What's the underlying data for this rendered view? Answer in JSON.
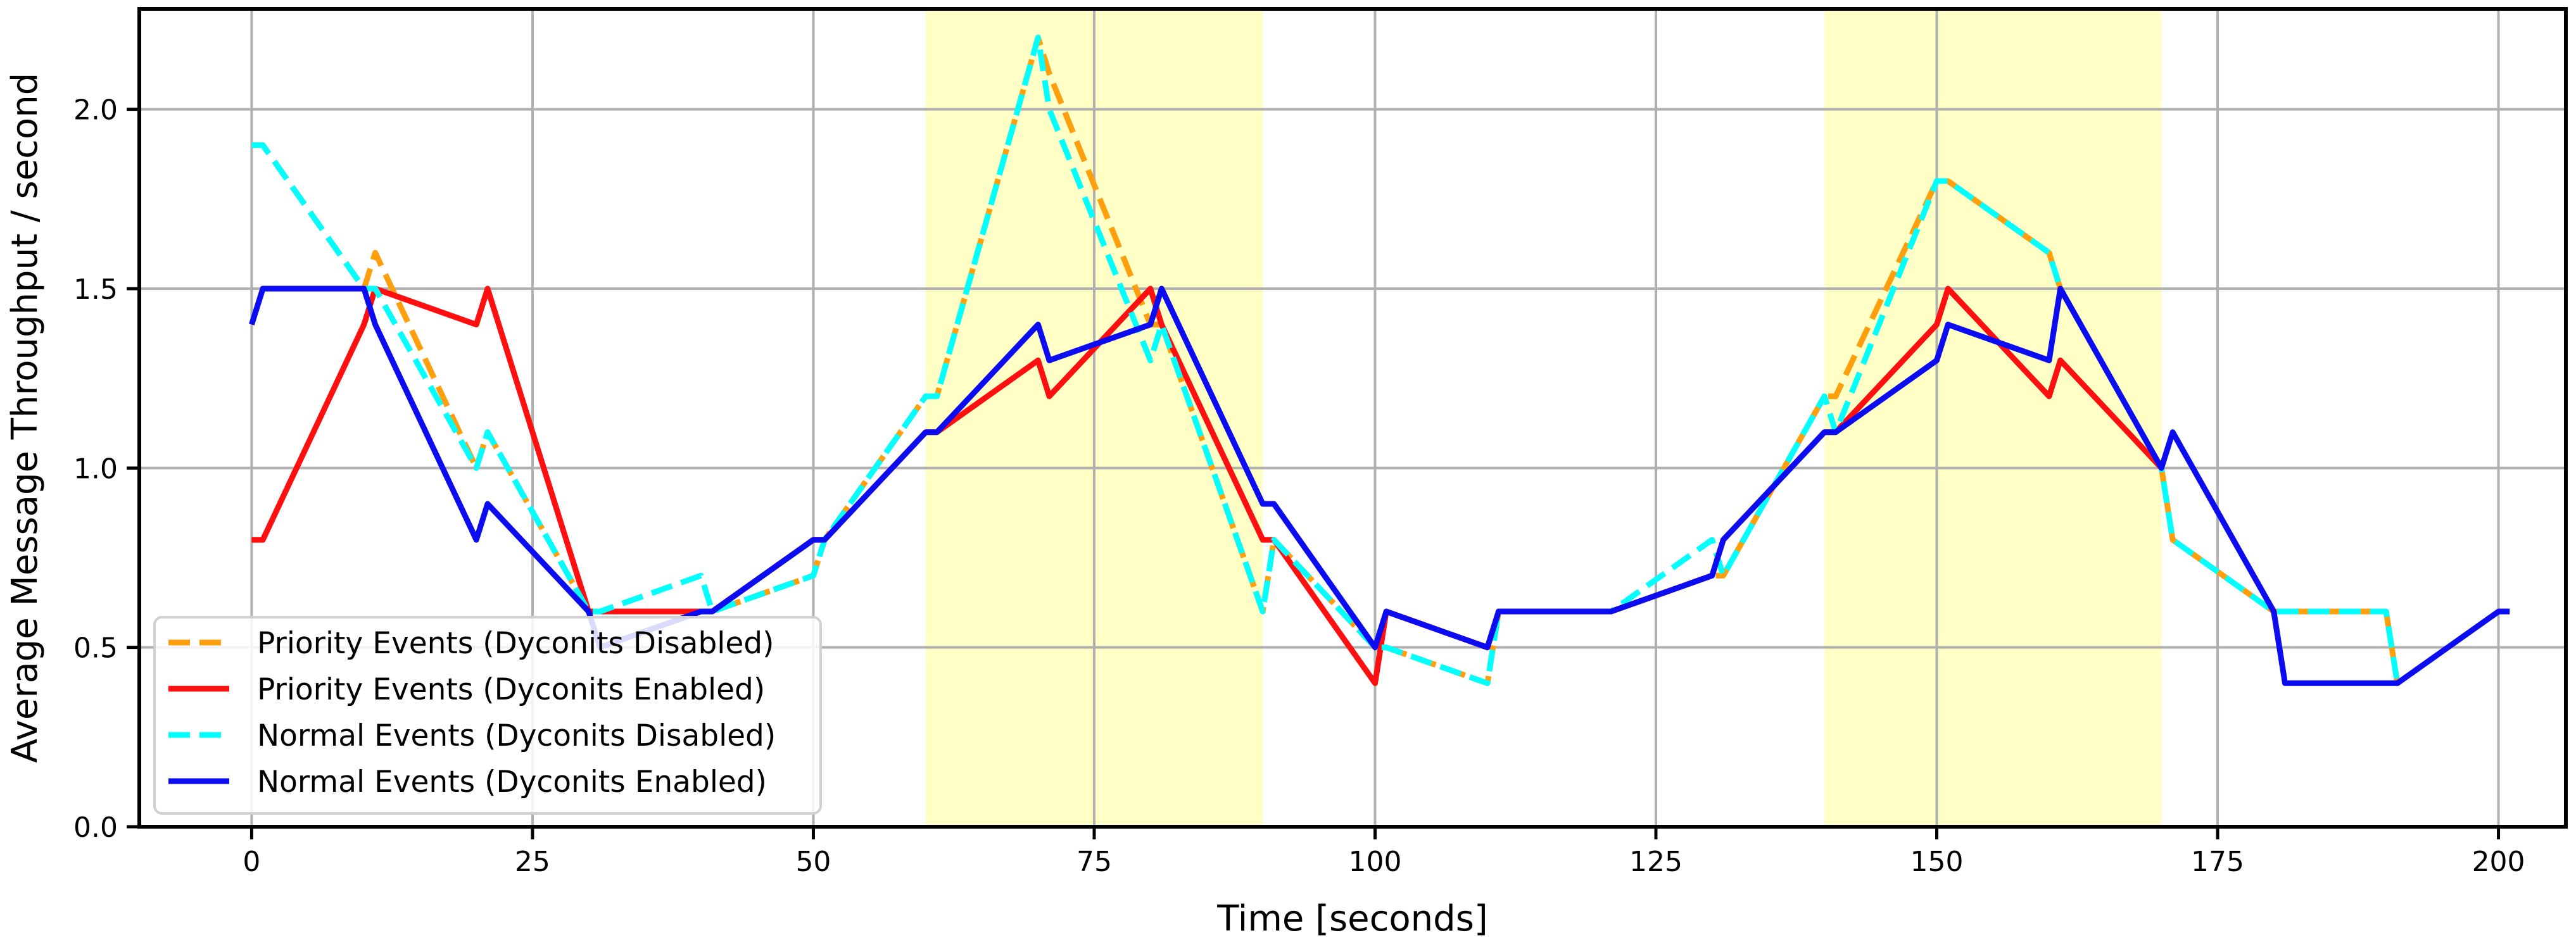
{
  "chart_data": {
    "type": "line",
    "title": "",
    "xlabel": "Time [seconds]",
    "ylabel": "Average Message Throughput / second",
    "xlim": [
      -10,
      206
    ],
    "ylim": [
      0.0,
      2.28
    ],
    "x_ticks": [
      0,
      25,
      50,
      75,
      100,
      125,
      150,
      175,
      200
    ],
    "y_ticks": [
      0.0,
      0.5,
      1.0,
      1.5,
      2.0
    ],
    "grid": true,
    "legend_position": "lower-left",
    "highlight_regions": [
      {
        "x0": 60,
        "x1": 90,
        "color": "#ffffc6"
      },
      {
        "x0": 140,
        "x1": 170,
        "color": "#ffffc6"
      }
    ],
    "series": [
      {
        "name": "Priority Events (Dyconits Disabled)",
        "color": "#ff9f0e",
        "style": "dashed",
        "points": [
          [
            0,
            1.9
          ],
          [
            1,
            1.9
          ],
          [
            10,
            1.5
          ],
          [
            11,
            1.6
          ],
          [
            20,
            1.0
          ],
          [
            21,
            1.1
          ],
          [
            30,
            0.6
          ],
          [
            31,
            0.6
          ],
          [
            40,
            0.6
          ],
          [
            41,
            0.6
          ],
          [
            50,
            0.7
          ],
          [
            51,
            0.8
          ],
          [
            60,
            1.2
          ],
          [
            61,
            1.2
          ],
          [
            70,
            2.2
          ],
          [
            71,
            2.1
          ],
          [
            80,
            1.4
          ],
          [
            81,
            1.4
          ],
          [
            90,
            0.6
          ],
          [
            91,
            0.8
          ],
          [
            100,
            0.5
          ],
          [
            101,
            0.5
          ],
          [
            110,
            0.4
          ],
          [
            111,
            0.6
          ],
          [
            120,
            0.6
          ],
          [
            121,
            0.6
          ],
          [
            130,
            0.7
          ],
          [
            131,
            0.7
          ],
          [
            140,
            1.2
          ],
          [
            141,
            1.2
          ],
          [
            150,
            1.8
          ],
          [
            151,
            1.8
          ],
          [
            160,
            1.6
          ],
          [
            161,
            1.5
          ],
          [
            170,
            1.0
          ],
          [
            171,
            0.8
          ],
          [
            180,
            0.6
          ],
          [
            181,
            0.6
          ],
          [
            190,
            0.6
          ],
          [
            191,
            0.4
          ]
        ]
      },
      {
        "name": "Priority Events (Dyconits Enabled)",
        "color": "#ff0f0f",
        "style": "solid",
        "points": [
          [
            0,
            0.8
          ],
          [
            1,
            0.8
          ],
          [
            10,
            1.4
          ],
          [
            11,
            1.5
          ],
          [
            20,
            1.4
          ],
          [
            21,
            1.5
          ],
          [
            30,
            0.6
          ],
          [
            31,
            0.6
          ],
          [
            40,
            0.6
          ],
          [
            41,
            0.6
          ],
          [
            50,
            0.8
          ],
          [
            51,
            0.8
          ],
          [
            60,
            1.1
          ],
          [
            61,
            1.1
          ],
          [
            70,
            1.3
          ],
          [
            71,
            1.2
          ],
          [
            80,
            1.5
          ],
          [
            81,
            1.4
          ],
          [
            90,
            0.8
          ],
          [
            91,
            0.8
          ],
          [
            100,
            0.4
          ],
          [
            101,
            0.6
          ],
          [
            110,
            0.5
          ],
          [
            111,
            0.6
          ],
          [
            120,
            0.6
          ],
          [
            121,
            0.6
          ],
          [
            130,
            0.7
          ],
          [
            131,
            0.8
          ],
          [
            140,
            1.1
          ],
          [
            141,
            1.1
          ],
          [
            150,
            1.4
          ],
          [
            151,
            1.5
          ],
          [
            160,
            1.2
          ],
          [
            161,
            1.3
          ],
          [
            170,
            1.0
          ]
        ]
      },
      {
        "name": "Normal Events (Dyconits Disabled)",
        "color": "#00ffff",
        "style": "dashed",
        "points": [
          [
            0,
            1.9
          ],
          [
            1,
            1.9
          ],
          [
            10,
            1.5
          ],
          [
            11,
            1.5
          ],
          [
            20,
            1.0
          ],
          [
            21,
            1.1
          ],
          [
            30,
            0.6
          ],
          [
            31,
            0.6
          ],
          [
            40,
            0.7
          ],
          [
            41,
            0.6
          ],
          [
            50,
            0.7
          ],
          [
            51,
            0.8
          ],
          [
            60,
            1.2
          ],
          [
            61,
            1.2
          ],
          [
            70,
            2.2
          ],
          [
            71,
            2.0
          ],
          [
            80,
            1.3
          ],
          [
            81,
            1.4
          ],
          [
            90,
            0.6
          ],
          [
            91,
            0.8
          ],
          [
            100,
            0.5
          ],
          [
            101,
            0.5
          ],
          [
            110,
            0.4
          ],
          [
            111,
            0.6
          ],
          [
            120,
            0.6
          ],
          [
            121,
            0.6
          ],
          [
            130,
            0.8
          ],
          [
            131,
            0.7
          ],
          [
            140,
            1.2
          ],
          [
            141,
            1.1
          ],
          [
            150,
            1.8
          ],
          [
            151,
            1.8
          ],
          [
            160,
            1.6
          ],
          [
            161,
            1.5
          ],
          [
            170,
            1.0
          ],
          [
            171,
            0.8
          ],
          [
            180,
            0.6
          ],
          [
            181,
            0.6
          ],
          [
            190,
            0.6
          ],
          [
            191,
            0.4
          ]
        ]
      },
      {
        "name": "Normal Events (Dyconits Enabled)",
        "color": "#0c0cf0",
        "style": "solid",
        "points": [
          [
            0,
            1.4
          ],
          [
            1,
            1.5
          ],
          [
            10,
            1.5
          ],
          [
            11,
            1.4
          ],
          [
            20,
            0.8
          ],
          [
            21,
            0.9
          ],
          [
            30,
            0.6
          ],
          [
            31,
            0.5
          ],
          [
            40,
            0.6
          ],
          [
            41,
            0.6
          ],
          [
            50,
            0.8
          ],
          [
            51,
            0.8
          ],
          [
            60,
            1.1
          ],
          [
            61,
            1.1
          ],
          [
            70,
            1.4
          ],
          [
            71,
            1.3
          ],
          [
            80,
            1.4
          ],
          [
            81,
            1.5
          ],
          [
            90,
            0.9
          ],
          [
            91,
            0.9
          ],
          [
            100,
            0.5
          ],
          [
            101,
            0.6
          ],
          [
            110,
            0.5
          ],
          [
            111,
            0.6
          ],
          [
            120,
            0.6
          ],
          [
            121,
            0.6
          ],
          [
            130,
            0.7
          ],
          [
            131,
            0.8
          ],
          [
            140,
            1.1
          ],
          [
            141,
            1.1
          ],
          [
            150,
            1.3
          ],
          [
            151,
            1.4
          ],
          [
            160,
            1.3
          ],
          [
            161,
            1.5
          ],
          [
            170,
            1.0
          ],
          [
            171,
            1.1
          ],
          [
            180,
            0.6
          ],
          [
            181,
            0.4
          ],
          [
            190,
            0.4
          ],
          [
            191,
            0.4
          ],
          [
            200,
            0.6
          ],
          [
            201,
            0.6
          ]
        ]
      }
    ]
  }
}
